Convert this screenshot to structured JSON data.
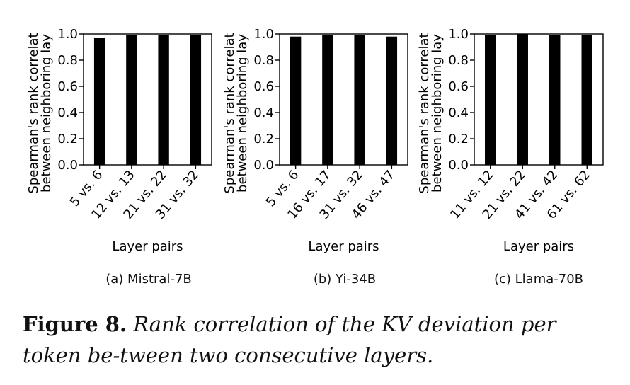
{
  "chart_data": [
    {
      "type": "bar",
      "subcaption": "(a) Mistral-7B",
      "categories": [
        "5 vs. 6",
        "12 vs. 13",
        "21 vs. 22",
        "31 vs. 32"
      ],
      "values": [
        0.97,
        0.99,
        0.99,
        0.99
      ],
      "xlabel": "Layer pairs",
      "ylabel_lines": [
        "Spearman's rank correlat",
        "between neighboring lay"
      ],
      "yticks": [
        "0.0",
        "0.2",
        "0.4",
        "0.6",
        "0.8",
        "1.0"
      ],
      "ylim": [
        0,
        1.0
      ],
      "bar_color": "#000000",
      "grid": false
    },
    {
      "type": "bar",
      "subcaption": "(b) Yi-34B",
      "categories": [
        "5 vs. 6",
        "16 vs. 17",
        "31 vs. 32",
        "46 vs. 47"
      ],
      "values": [
        0.98,
        0.99,
        0.99,
        0.98
      ],
      "xlabel": "Layer pairs",
      "ylabel_lines": [
        "Spearman's rank correlat",
        "between neighboring lay"
      ],
      "yticks": [
        "0.0",
        "0.2",
        "0.4",
        "0.6",
        "0.8",
        "1.0"
      ],
      "ylim": [
        0,
        1.0
      ],
      "bar_color": "#000000",
      "grid": false
    },
    {
      "type": "bar",
      "subcaption": "(c) Llama-70B",
      "categories": [
        "11 vs. 12",
        "21 vs. 22",
        "41 vs. 42",
        "61 vs. 62"
      ],
      "values": [
        0.99,
        1.0,
        0.99,
        0.99
      ],
      "xlabel": "Layer pairs",
      "ylabel_lines": [
        "Spearman's rank correlat",
        "between neighboring lay"
      ],
      "yticks": [
        "0.0",
        "0.2",
        "0.4",
        "0.6",
        "0.8",
        "1.0"
      ],
      "ylim": [
        0,
        1.0
      ],
      "bar_color": "#000000",
      "grid": false
    }
  ],
  "caption": {
    "label": "Figure 8.",
    "text": "Rank correlation of the KV deviation per token be-tween two consecutive layers."
  }
}
